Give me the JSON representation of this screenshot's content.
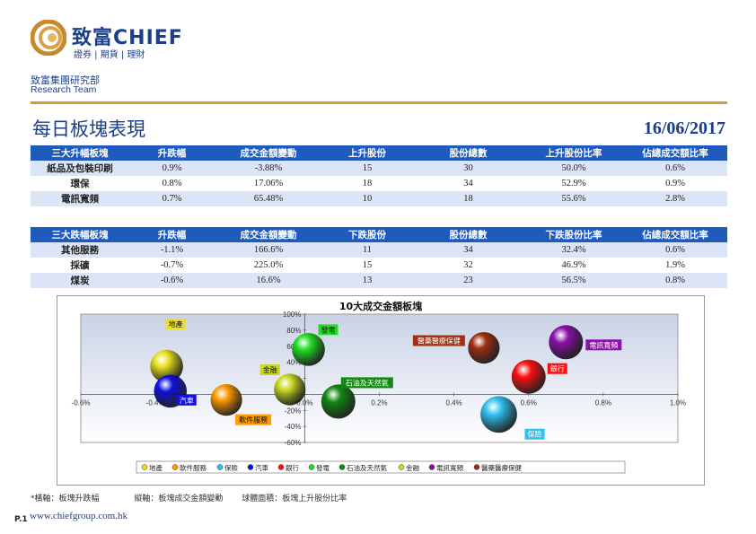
{
  "header": {
    "brand_cn": "致富",
    "brand_en": "CHIEF",
    "brand_sub": "證券 | 期貨 | 理財",
    "dept_cn": "致富集團研究部",
    "dept_en": "Research Team"
  },
  "report": {
    "title": "每日板塊表現",
    "date": "16/06/2017"
  },
  "rising_table": {
    "headers": [
      "三大升幅板塊",
      "升跌幅",
      "成交金額變動",
      "上升股份",
      "股份總數",
      "上升股份比率",
      "佔總成交額比率"
    ],
    "rows": [
      [
        "紙品及包裝印刷",
        "0.9%",
        "-3.88%",
        "15",
        "30",
        "50.0%",
        "0.6%"
      ],
      [
        "環保",
        "0.8%",
        "17.06%",
        "18",
        "34",
        "52.9%",
        "0.9%"
      ],
      [
        "電訊寬頻",
        "0.7%",
        "65.48%",
        "10",
        "18",
        "55.6%",
        "2.8%"
      ]
    ]
  },
  "falling_table": {
    "headers": [
      "三大跌幅板塊",
      "升跌幅",
      "成交金額變動",
      "下跌股份",
      "股份總數",
      "下跌股份比率",
      "佔總成交額比率"
    ],
    "rows": [
      [
        "其他服務",
        "-1.1%",
        "166.6%",
        "11",
        "34",
        "32.4%",
        "0.6%"
      ],
      [
        "採礦",
        "-0.7%",
        "225.0%",
        "15",
        "32",
        "46.9%",
        "1.9%"
      ],
      [
        "煤炭",
        "-0.6%",
        "16.6%",
        "13",
        "23",
        "56.5%",
        "0.8%"
      ]
    ]
  },
  "chart_data": {
    "type": "bubble",
    "title": "10大成交金額板塊",
    "xlabel": "板塊升跌幅",
    "ylabel": "板塊成交金額變動",
    "xlim": [
      -0.006,
      0.01
    ],
    "ylim": [
      -0.6,
      1.0
    ],
    "x_ticks": [
      "-0.6%",
      "-0.4%",
      "-0.2%",
      "0.0%",
      "0.2%",
      "0.4%",
      "0.6%",
      "0.8%",
      "1.0%"
    ],
    "y_ticks": [
      "100%",
      "80%",
      "60%",
      "40%",
      "20%",
      "0%",
      "-20%",
      "-40%",
      "-60%"
    ],
    "grid": false,
    "legend_position": "bottom",
    "series": [
      {
        "name": "地產",
        "x": -0.0037,
        "y": 0.35,
        "size": 0.45,
        "color": "#e8e020"
      },
      {
        "name": "軟件服務",
        "x": -0.0021,
        "y": -0.07,
        "size": 0.4,
        "color": "#ff9a00"
      },
      {
        "name": "保險",
        "x": 0.0052,
        "y": -0.25,
        "size": 0.6,
        "color": "#30c0f0"
      },
      {
        "name": "汽車",
        "x": -0.0036,
        "y": 0.04,
        "size": 0.45,
        "color": "#1010e0"
      },
      {
        "name": "銀行",
        "x": 0.006,
        "y": 0.22,
        "size": 0.5,
        "color": "#ff1010"
      },
      {
        "name": "發電",
        "x": 0.0001,
        "y": 0.56,
        "size": 0.45,
        "color": "#22dd22"
      },
      {
        "name": "石油及天然氣",
        "x": 0.0009,
        "y": -0.09,
        "size": 0.5,
        "color": "#118811"
      },
      {
        "name": "金融",
        "x": -0.0004,
        "y": 0.06,
        "size": 0.4,
        "color": "#c8d820"
      },
      {
        "name": "電訊寬頻",
        "x": 0.007,
        "y": 0.65,
        "size": 0.5,
        "color": "#8a10a8"
      },
      {
        "name": "醫藥醫療保健",
        "x": 0.0048,
        "y": 0.58,
        "size": 0.4,
        "color": "#a03010"
      }
    ]
  },
  "footnote": {
    "x_axis": "橫軸：板塊升跌幅",
    "y_axis": "縱軸：板塊成交金額變動",
    "bubble": "球體面積：板塊上升股份比率"
  },
  "footer": {
    "page": "P.1",
    "website": "www.chiefgroup.com.hk"
  },
  "colors": {
    "brand_blue": "#1c3f8c",
    "header_blue": "#1f5bbd",
    "accent_gold": "#d79a3a"
  }
}
